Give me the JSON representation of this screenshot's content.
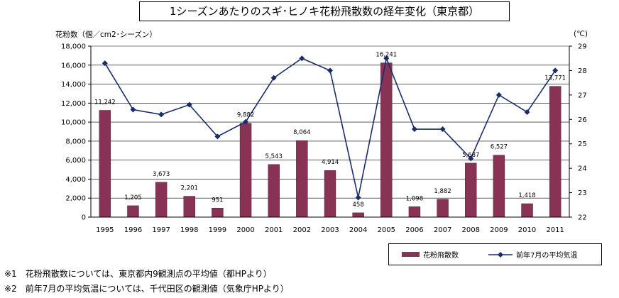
{
  "chart_data": {
    "type": "bar+line",
    "title": "1シーズンあたりのスギ･ヒノキ花粉飛散数の経年変化（東京都）",
    "ylabel_left": "花粉数（個／cm2･シーズン）",
    "ylabel_right": "(℃)",
    "ylim_left": [
      0,
      18000
    ],
    "yticks_left": [
      "0",
      "2,000",
      "4,000",
      "6,000",
      "8,000",
      "10,000",
      "12,000",
      "14,000",
      "16,000",
      "18,000"
    ],
    "ylim_right": [
      22,
      29
    ],
    "yticks_right": [
      "22",
      "23",
      "24",
      "25",
      "26",
      "27",
      "28",
      "29"
    ],
    "categories": [
      "1995",
      "1996",
      "1997",
      "1998",
      "1999",
      "2000",
      "2001",
      "2002",
      "2003",
      "2004",
      "2005",
      "2006",
      "2007",
      "2008",
      "2009",
      "2010",
      "2011"
    ],
    "series": [
      {
        "name": "花粉飛散数",
        "type": "bar",
        "color": "#883355",
        "values": [
          11242,
          1205,
          3673,
          2201,
          951,
          9882,
          5543,
          8064,
          4914,
          458,
          16241,
          1098,
          1882,
          5687,
          6527,
          1418,
          13771
        ],
        "labels": [
          "11,242",
          "1,205",
          "3,673",
          "2,201",
          "951",
          "9,882",
          "5,543",
          "8,064",
          "4,914",
          "458",
          "16,241",
          "1,098",
          "1,882",
          "5,687",
          "6,527",
          "1,418",
          "13,771"
        ]
      },
      {
        "name": "前年7月の平均気温",
        "type": "line",
        "color": "#1a2d6b",
        "values": [
          28.3,
          26.4,
          26.2,
          26.6,
          25.3,
          25.9,
          27.7,
          28.5,
          28.0,
          22.8,
          28.5,
          25.6,
          25.6,
          24.4,
          27.0,
          26.3,
          28.0
        ]
      }
    ],
    "legend_position": "bottom-right",
    "grid": "horizontal"
  },
  "notes": [
    "※1　花粉飛散数については、東京都内9観測点の平均値（都HPより）",
    "※2　前年7月の平均気温については、千代田区の観測値（気象庁HPより）"
  ]
}
